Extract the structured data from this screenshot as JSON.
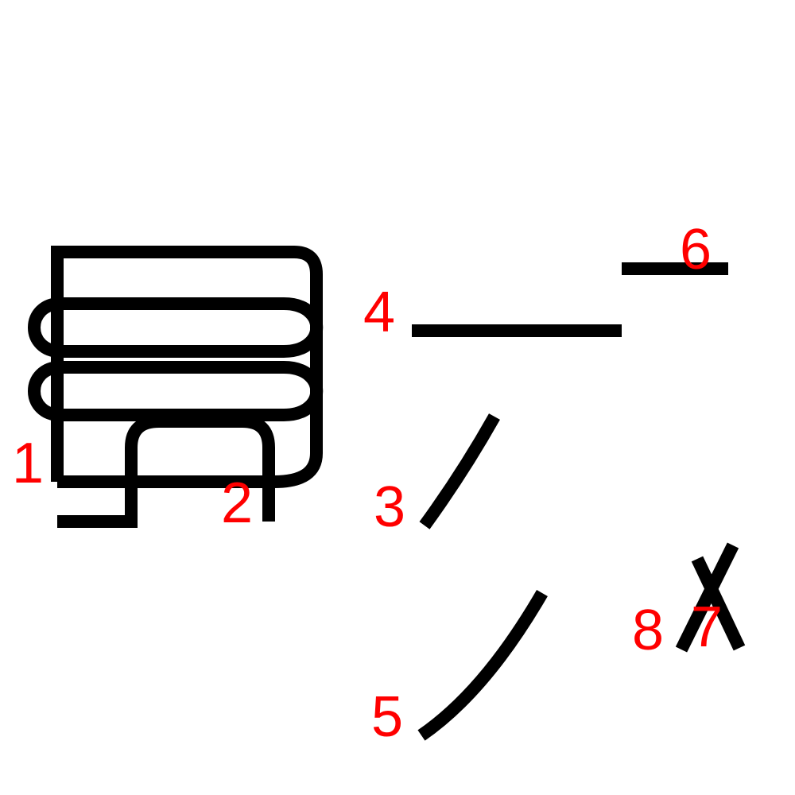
{
  "stroke_color": "#000000",
  "number_color": "#ff0000",
  "labels": {
    "n1": "1",
    "n2": "2",
    "n3": "3",
    "n4": "4",
    "n5": "5",
    "n6": "6",
    "n7": "7",
    "n8": "8"
  }
}
